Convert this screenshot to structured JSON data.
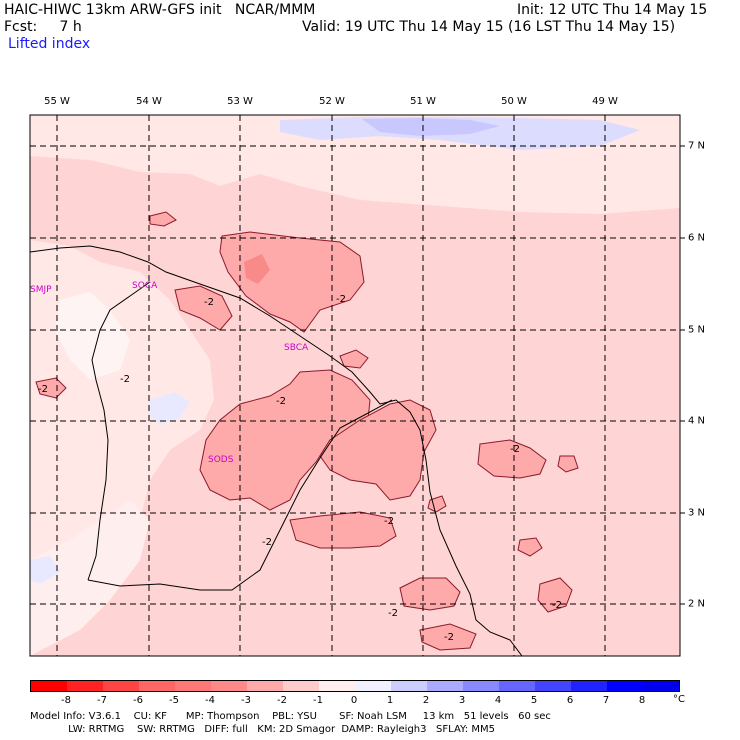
{
  "header": {
    "model_title": "HAIC-HIWC 13km ARW-GFS init   NCAR/MMM",
    "init": "Init: 12 UTC Thu 14 May 15",
    "fcst": "Fcst:     7 h",
    "valid": "Valid: 19 UTC Thu 14 May 15 (16 LST Thu 14 May 15)",
    "field": "Lifted index"
  },
  "map": {
    "lon_labels": [
      "55 W",
      "54 W",
      "53 W",
      "52 W",
      "51 W",
      "50 W",
      "49 W"
    ],
    "lat_labels": [
      "7 N",
      "6 N",
      "5 N",
      "4 N",
      "3 N",
      "2 N"
    ],
    "stations": [
      "SMJP",
      "SOCA",
      "SBCA",
      "SODS"
    ],
    "contour_label": "-2",
    "colors": {
      "background": "#ffd4d4",
      "light": "#ffe8e6",
      "medium": "#ffaaaa",
      "strong": "#f98a8a",
      "blue": "#dcdcff",
      "blue_dark": "#c8c8ff",
      "station": "#cc00cc"
    }
  },
  "colorbar": {
    "labels": [
      "-8",
      "-7",
      "-6",
      "-5",
      "-4",
      "-3",
      "-2",
      "-1",
      "0",
      "1",
      "2",
      "3",
      "4",
      "5",
      "6",
      "7",
      "8"
    ],
    "unit": "°C",
    "colors": [
      "#ff0000",
      "#ff2222",
      "#ff4444",
      "#ff6666",
      "#ff7777",
      "#ff8888",
      "#ffaaaa",
      "#ffcccc",
      "#ffeeee",
      "#f0f0ff",
      "#ccccff",
      "#aaaaff",
      "#8888ff",
      "#6666ff",
      "#4444ff",
      "#2222ff",
      "#0000ff"
    ]
  },
  "footer": {
    "line1": "Model Info: V3.6.1    CU: KF      MP: Thompson    PBL: YSU       SF: Noah LSM     13 km   51 levels   60 sec",
    "line2": "            LW: RRTMG    SW: RRTMG   DIFF: full   KM: 2D Smagor  DAMP: Rayleigh3   SFLAY: MM5"
  }
}
